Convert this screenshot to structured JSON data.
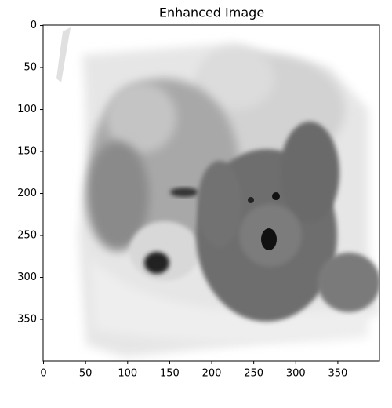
{
  "chart_data": {
    "type": "image",
    "title": "Enhanced Image",
    "xlim": [
      -0.5,
      399.5
    ],
    "ylim": [
      399.5,
      -0.5
    ],
    "xticks": [
      0,
      50,
      100,
      150,
      200,
      250,
      300,
      350
    ],
    "yticks": [
      0,
      50,
      100,
      150,
      200,
      250,
      300,
      350
    ]
  }
}
